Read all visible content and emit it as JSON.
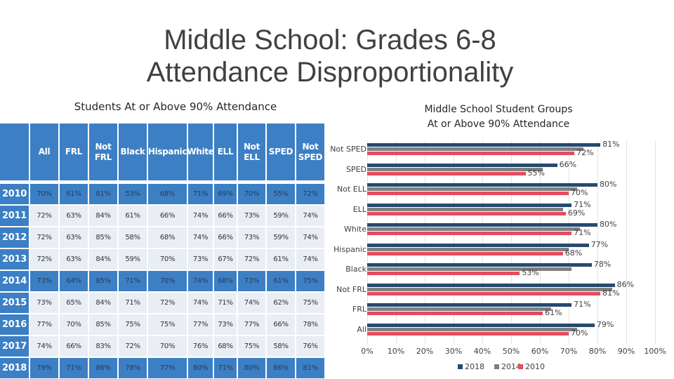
{
  "title_line1": "Middle School: Grades 6-8",
  "title_line2": "Attendance Disproportionality",
  "table": {
    "title": "Students At or Above 90% Attendance",
    "columns": [
      "All",
      "FRL",
      "Not FRL",
      "Black",
      "Hispanic",
      "White",
      "ELL",
      "Not ELL",
      "SPED",
      "Not SPED"
    ],
    "rows": [
      {
        "year": "2010",
        "values": [
          "70%",
          "61%",
          "81%",
          "53%",
          "68%",
          "71%",
          "69%",
          "70%",
          "55%",
          "72%"
        ],
        "highlight": true
      },
      {
        "year": "2011",
        "values": [
          "72%",
          "63%",
          "84%",
          "61%",
          "66%",
          "74%",
          "66%",
          "73%",
          "59%",
          "74%"
        ],
        "highlight": false
      },
      {
        "year": "2012",
        "values": [
          "72%",
          "63%",
          "85%",
          "58%",
          "68%",
          "74%",
          "66%",
          "73%",
          "59%",
          "74%"
        ],
        "highlight": false
      },
      {
        "year": "2013",
        "values": [
          "72%",
          "63%",
          "84%",
          "59%",
          "70%",
          "73%",
          "67%",
          "72%",
          "61%",
          "74%"
        ],
        "highlight": false
      },
      {
        "year": "2014",
        "values": [
          "73%",
          "64%",
          "85%",
          "71%",
          "70%",
          "74%",
          "68%",
          "73%",
          "61%",
          "75%"
        ],
        "highlight": true
      },
      {
        "year": "2015",
        "values": [
          "73%",
          "65%",
          "84%",
          "71%",
          "72%",
          "74%",
          "71%",
          "74%",
          "62%",
          "75%"
        ],
        "highlight": false
      },
      {
        "year": "2016",
        "values": [
          "77%",
          "70%",
          "85%",
          "75%",
          "75%",
          "77%",
          "73%",
          "77%",
          "66%",
          "78%"
        ],
        "highlight": false
      },
      {
        "year": "2017",
        "values": [
          "74%",
          "66%",
          "83%",
          "72%",
          "70%",
          "76%",
          "68%",
          "75%",
          "58%",
          "76%"
        ],
        "highlight": false
      },
      {
        "year": "2018",
        "values": [
          "79%",
          "71%",
          "86%",
          "78%",
          "77%",
          "80%",
          "71%",
          "80%",
          "66%",
          "81%"
        ],
        "highlight": true
      }
    ]
  },
  "chart_data": {
    "type": "bar",
    "orientation": "horizontal",
    "title_line1": "Middle School Student Groups",
    "title_line2": "At or Above 90% Attendance",
    "categories": [
      "Not SPED",
      "SPED",
      "Not ELL",
      "ELL",
      "White",
      "Hispanic",
      "Black",
      "Not FRL",
      "FRL",
      "All"
    ],
    "series": [
      {
        "name": "2018",
        "color": "#264a6e",
        "values": [
          81,
          66,
          80,
          71,
          80,
          77,
          78,
          86,
          71,
          79
        ],
        "labeled": true
      },
      {
        "name": "2014",
        "color": "#808080",
        "values": [
          75,
          61,
          73,
          68,
          74,
          70,
          71,
          85,
          64,
          73
        ],
        "labeled": false
      },
      {
        "name": "2010",
        "color": "#e54b5e",
        "values": [
          72,
          55,
          70,
          69,
          71,
          68,
          53,
          81,
          61,
          70
        ],
        "labeled": true
      }
    ],
    "xlim": [
      0,
      100
    ],
    "xticks": [
      "0%",
      "10%",
      "20%",
      "30%",
      "40%",
      "50%",
      "60%",
      "70%",
      "80%",
      "90%",
      "100%"
    ],
    "grid": true,
    "legend": "bottom"
  }
}
